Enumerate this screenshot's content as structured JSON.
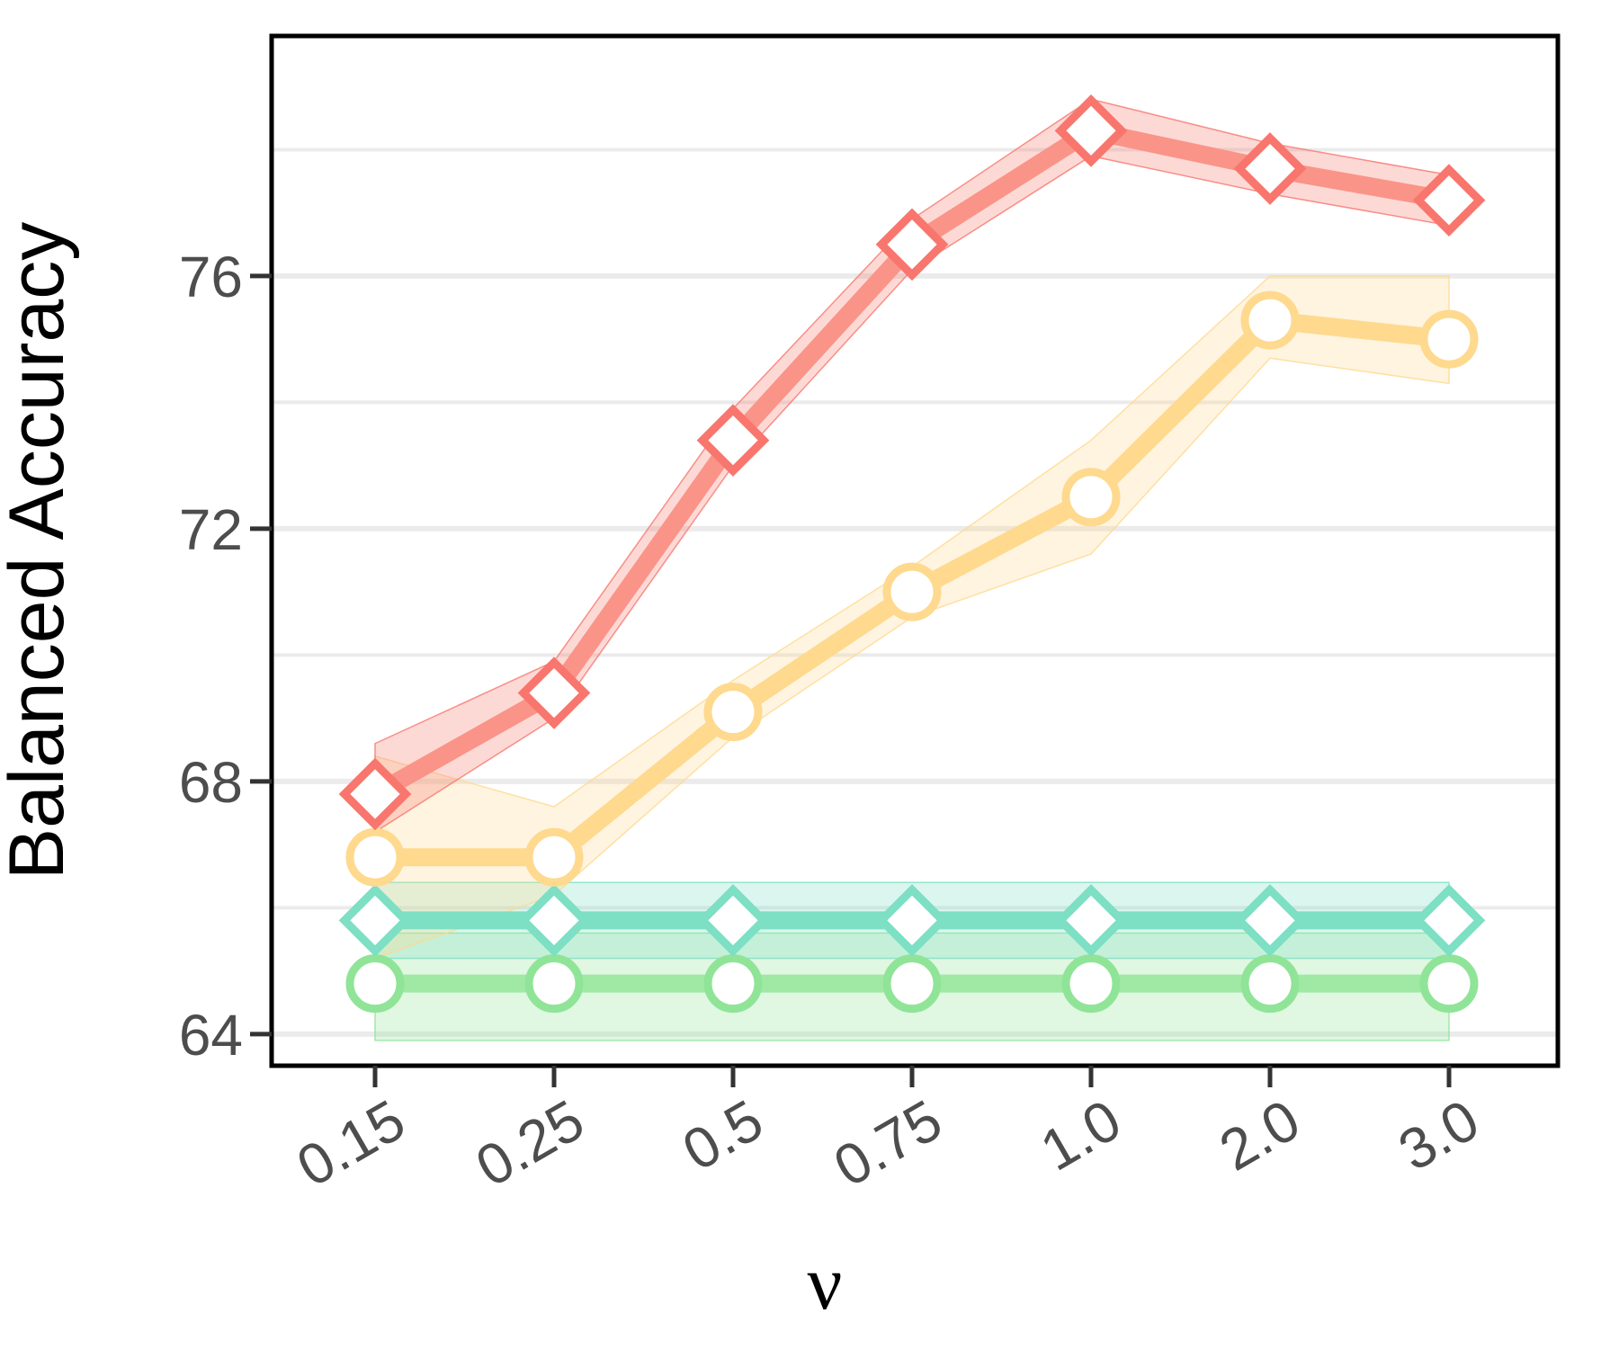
{
  "chart_data": {
    "type": "line",
    "xlabel": "ν",
    "ylabel": "Balanced Accuracy",
    "categories": [
      "0.15",
      "0.25",
      "0.5",
      "0.75",
      "1.0",
      "2.0",
      "3.0"
    ],
    "ylim": [
      63.5,
      79.8
    ],
    "yticks": [
      64,
      68,
      72,
      76
    ],
    "grid": {
      "horizontal": true,
      "vertical": false,
      "color": "#ebebeb"
    },
    "series": [
      {
        "color": "#f8766d",
        "line_color": "#fa9488",
        "marker": "diamond",
        "values": [
          67.8,
          69.4,
          73.4,
          76.5,
          78.3,
          77.7,
          77.2
        ],
        "lower": [
          67.2,
          69.0,
          73.0,
          76.1,
          77.9,
          77.3,
          76.8
        ],
        "upper": [
          68.6,
          69.9,
          73.9,
          76.9,
          78.8,
          78.1,
          77.6
        ]
      },
      {
        "color": "#fed98e",
        "line_color": "#fed98e",
        "marker": "circle",
        "values": [
          66.8,
          66.8,
          69.1,
          71.0,
          72.5,
          75.3,
          75.0
        ],
        "lower": [
          65.2,
          66.2,
          68.7,
          70.6,
          71.6,
          74.7,
          74.3
        ],
        "upper": [
          68.4,
          67.6,
          69.6,
          71.4,
          73.4,
          76.0,
          76.0
        ]
      },
      {
        "color": "#7ddfc3",
        "line_color": "#7ddfc3",
        "marker": "diamond",
        "values": [
          65.8,
          65.8,
          65.8,
          65.8,
          65.8,
          65.8,
          65.8
        ],
        "lower": [
          65.2,
          65.2,
          65.2,
          65.2,
          65.2,
          65.2,
          65.2
        ],
        "upper": [
          66.4,
          66.4,
          66.4,
          66.4,
          66.4,
          66.4,
          66.4
        ]
      },
      {
        "color": "#90e498",
        "line_color": "#9fe9a4",
        "marker": "circle",
        "values": [
          64.8,
          64.8,
          64.8,
          64.8,
          64.8,
          64.8,
          64.8
        ],
        "lower": [
          63.9,
          63.9,
          63.9,
          63.9,
          63.9,
          63.9,
          63.9
        ],
        "upper": [
          65.6,
          65.6,
          65.6,
          65.6,
          65.6,
          65.6,
          65.6
        ]
      }
    ]
  }
}
